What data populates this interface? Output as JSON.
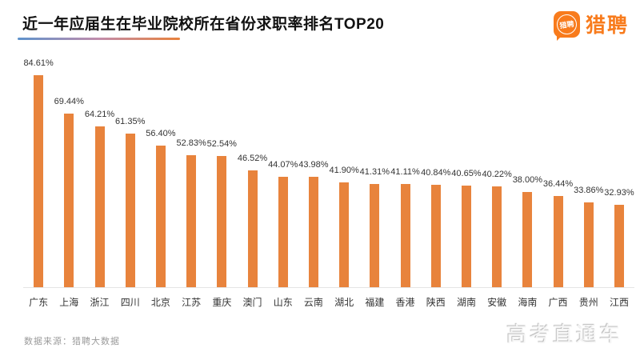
{
  "header": {
    "title": "近一年应届生在毕业院校所在省份求职率排名TOP20",
    "logo": {
      "badge_text": "猎聘",
      "wordmark": "猎聘",
      "brand_color": "#f87b1c"
    }
  },
  "chart_data": {
    "type": "bar",
    "title": "近一年应届生在毕业院校所在省份求职率排名TOP20",
    "categories": [
      "广东",
      "上海",
      "浙江",
      "四川",
      "北京",
      "江苏",
      "重庆",
      "澳门",
      "山东",
      "云南",
      "湖北",
      "福建",
      "香港",
      "陕西",
      "湖南",
      "安徽",
      "海南",
      "广西",
      "贵州",
      "江西"
    ],
    "values": [
      84.61,
      69.44,
      64.21,
      61.35,
      56.4,
      52.83,
      52.54,
      46.52,
      44.07,
      43.98,
      41.9,
      41.31,
      41.11,
      40.84,
      40.65,
      40.22,
      38.0,
      36.44,
      33.86,
      32.93
    ],
    "value_labels": [
      "84.61%",
      "69.44%",
      "64.21%",
      "61.35%",
      "56.40%",
      "52.83%",
      "52.54%",
      "46.52%",
      "44.07%",
      "43.98%",
      "41.90%",
      "41.31%",
      "41.11%",
      "40.84%",
      "40.65%",
      "40.22%",
      "38.00%",
      "36.44%",
      "33.86%",
      "32.93%"
    ],
    "unit": "%",
    "bar_color": "#e8833c",
    "grid": false,
    "legend": null,
    "xlabel": "",
    "ylabel": "",
    "ylim": [
      0,
      90
    ]
  },
  "footer": {
    "source": "数据来源：猎聘大数据",
    "watermark": "高考直通车"
  },
  "colors": {
    "bar": "#e8833c",
    "logo_orange": "#f87b1c",
    "underline_gradient": [
      "#5e93cc",
      "#c18cab",
      "#e8823c"
    ],
    "axis_line": "#e4e4e4"
  }
}
